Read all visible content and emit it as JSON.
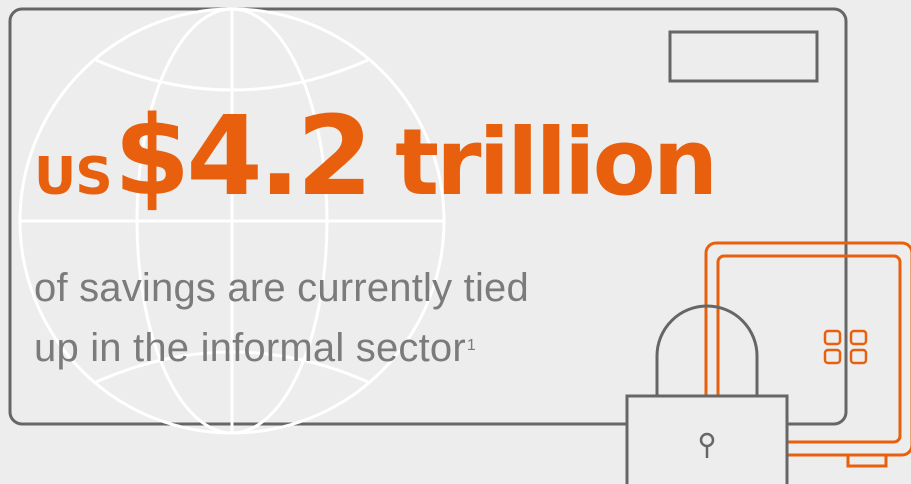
{
  "headline": {
    "currency": "US",
    "amount": "$4.2",
    "unit": "trillion"
  },
  "subtext": {
    "line1": "of savings are currently tied",
    "line2": "up in the informal sector",
    "footnote": "1"
  },
  "colors": {
    "accent": "#e8600e",
    "outline": "#666666",
    "globe_line": "#ffffff",
    "text_gray": "#7b7b7b",
    "background": "#ededed"
  },
  "icons": [
    "globe-icon",
    "padlock-icon",
    "safe-icon",
    "card-outline"
  ]
}
